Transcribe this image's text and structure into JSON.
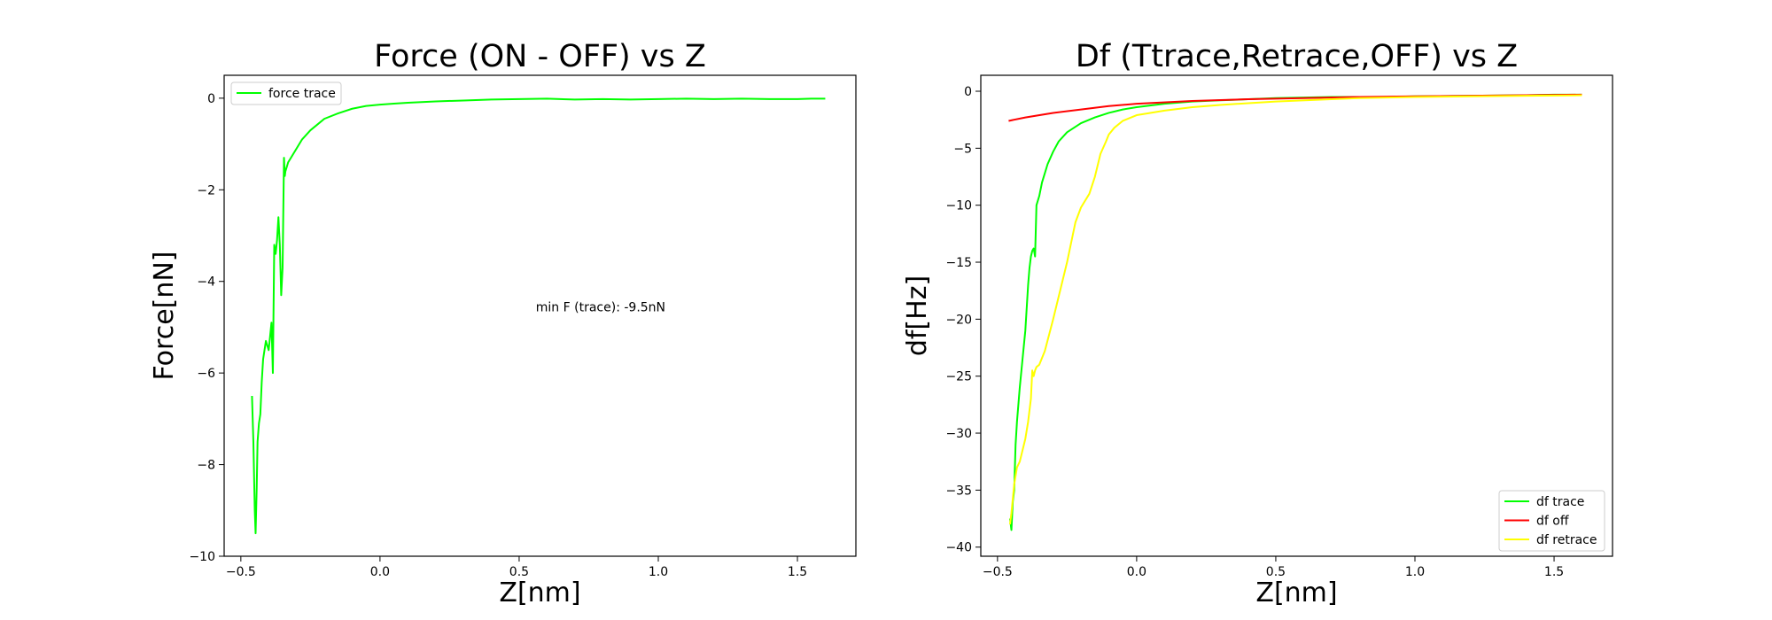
{
  "chart_data": [
    {
      "type": "line",
      "title": "Force (ON - OFF) vs Z",
      "xlabel": "Z[nm]",
      "ylabel": "Force[nN]",
      "xlim": [
        -0.56,
        1.71
      ],
      "ylim": [
        -10,
        0.5
      ],
      "xticks": [
        -0.5,
        0.0,
        0.5,
        1.0,
        1.5
      ],
      "xtick_labels": [
        "−0.5",
        "0.0",
        "0.5",
        "1.0",
        "1.5"
      ],
      "yticks": [
        0,
        -2,
        -4,
        -6,
        -8,
        -10
      ],
      "ytick_labels": [
        "0",
        "−2",
        "−4",
        "−6",
        "−8",
        "−10"
      ],
      "grid": false,
      "legend_position": "upper-left",
      "annotation": {
        "text": "min F (trace): -9.5nN",
        "x": 0.56,
        "y": -4.65
      },
      "series": [
        {
          "name": "force trace",
          "color": "#00ff00",
          "x": [
            -0.46,
            -0.455,
            -0.45,
            -0.447,
            -0.443,
            -0.44,
            -0.435,
            -0.43,
            -0.425,
            -0.42,
            -0.41,
            -0.4,
            -0.39,
            -0.385,
            -0.38,
            -0.375,
            -0.37,
            -0.365,
            -0.36,
            -0.355,
            -0.35,
            -0.345,
            -0.342,
            -0.34,
            -0.335,
            -0.33,
            -0.32,
            -0.3,
            -0.28,
            -0.25,
            -0.22,
            -0.2,
            -0.15,
            -0.1,
            -0.05,
            0.0,
            0.05,
            0.1,
            0.2,
            0.3,
            0.4,
            0.5,
            0.6,
            0.7,
            0.8,
            0.9,
            1.0,
            1.1,
            1.2,
            1.3,
            1.4,
            1.5,
            1.55,
            1.6
          ],
          "y": [
            -6.5,
            -7.5,
            -9.0,
            -9.5,
            -8.5,
            -7.5,
            -7.1,
            -6.9,
            -6.2,
            -5.7,
            -5.3,
            -5.5,
            -4.9,
            -6.0,
            -3.2,
            -3.4,
            -3.1,
            -2.6,
            -3.2,
            -4.3,
            -3.7,
            -1.3,
            -1.7,
            -1.6,
            -1.5,
            -1.4,
            -1.3,
            -1.1,
            -0.9,
            -0.7,
            -0.55,
            -0.45,
            -0.33,
            -0.23,
            -0.17,
            -0.14,
            -0.12,
            -0.1,
            -0.07,
            -0.05,
            -0.03,
            -0.02,
            -0.01,
            -0.03,
            -0.02,
            -0.03,
            -0.02,
            -0.01,
            -0.02,
            -0.01,
            -0.02,
            -0.02,
            -0.01,
            -0.01
          ]
        }
      ]
    },
    {
      "type": "line",
      "title": "Df (Ttrace,Retrace,OFF) vs Z",
      "xlabel": "Z[nm]",
      "ylabel": "df[Hz]",
      "xlim": [
        -0.56,
        1.71
      ],
      "ylim": [
        -40.8,
        1.4
      ],
      "xticks": [
        -0.5,
        0.0,
        0.5,
        1.0,
        1.5
      ],
      "xtick_labels": [
        "−0.5",
        "0.0",
        "0.5",
        "1.0",
        "1.5"
      ],
      "yticks": [
        0,
        -5,
        -10,
        -15,
        -20,
        -25,
        -30,
        -35,
        -40
      ],
      "ytick_labels": [
        "0",
        "−5",
        "−10",
        "−15",
        "−20",
        "−25",
        "−30",
        "−35",
        "−40"
      ],
      "grid": false,
      "legend_position": "lower-right",
      "series": [
        {
          "name": "df trace",
          "color": "#00ff00",
          "x": [
            -0.455,
            -0.45,
            -0.445,
            -0.44,
            -0.435,
            -0.43,
            -0.42,
            -0.41,
            -0.4,
            -0.395,
            -0.39,
            -0.385,
            -0.38,
            -0.375,
            -0.37,
            -0.365,
            -0.36,
            -0.35,
            -0.34,
            -0.33,
            -0.32,
            -0.3,
            -0.28,
            -0.25,
            -0.2,
            -0.15,
            -0.1,
            -0.05,
            0.0,
            0.1,
            0.2,
            0.3,
            0.5,
            0.7,
            0.9,
            1.0,
            1.2,
            1.4,
            1.5,
            1.6
          ],
          "y": [
            -37.5,
            -38.5,
            -36.0,
            -35.0,
            -31.0,
            -29.0,
            -26.0,
            -23.5,
            -21.0,
            -19.0,
            -17.0,
            -15.5,
            -14.5,
            -14.0,
            -13.8,
            -14.5,
            -10.0,
            -9.2,
            -8.0,
            -7.2,
            -6.4,
            -5.3,
            -4.4,
            -3.6,
            -2.8,
            -2.3,
            -1.9,
            -1.6,
            -1.4,
            -1.1,
            -0.9,
            -0.8,
            -0.6,
            -0.5,
            -0.5,
            -0.45,
            -0.4,
            -0.35,
            -0.3,
            -0.3
          ]
        },
        {
          "name": "df off",
          "color": "#ff0000",
          "x": [
            -0.46,
            -0.4,
            -0.3,
            -0.2,
            -0.1,
            0.0,
            0.2,
            0.4,
            0.6,
            0.8,
            1.0,
            1.2,
            1.4,
            1.6
          ],
          "y": [
            -2.6,
            -2.3,
            -1.9,
            -1.6,
            -1.3,
            -1.1,
            -0.85,
            -0.7,
            -0.6,
            -0.5,
            -0.45,
            -0.4,
            -0.35,
            -0.3
          ]
        },
        {
          "name": "df retrace",
          "color": "#ffff00",
          "x": [
            -0.455,
            -0.45,
            -0.44,
            -0.43,
            -0.42,
            -0.41,
            -0.4,
            -0.39,
            -0.38,
            -0.375,
            -0.37,
            -0.365,
            -0.36,
            -0.35,
            -0.33,
            -0.3,
            -0.27,
            -0.25,
            -0.22,
            -0.2,
            -0.17,
            -0.15,
            -0.13,
            -0.11,
            -0.1,
            -0.08,
            -0.05,
            0.0,
            0.1,
            0.2,
            0.3,
            0.5,
            0.7,
            0.8,
            1.0,
            1.2,
            1.4,
            1.6
          ],
          "y": [
            -38.0,
            -37.0,
            -34.5,
            -33.0,
            -32.5,
            -31.5,
            -30.5,
            -29.0,
            -27.0,
            -24.5,
            -25.0,
            -24.5,
            -24.2,
            -24.0,
            -22.8,
            -20.0,
            -17.0,
            -15.0,
            -11.5,
            -10.2,
            -9.0,
            -7.5,
            -5.5,
            -4.4,
            -3.8,
            -3.2,
            -2.6,
            -2.1,
            -1.7,
            -1.4,
            -1.2,
            -0.9,
            -0.7,
            -0.6,
            -0.5,
            -0.45,
            -0.4,
            -0.35
          ]
        }
      ]
    }
  ]
}
